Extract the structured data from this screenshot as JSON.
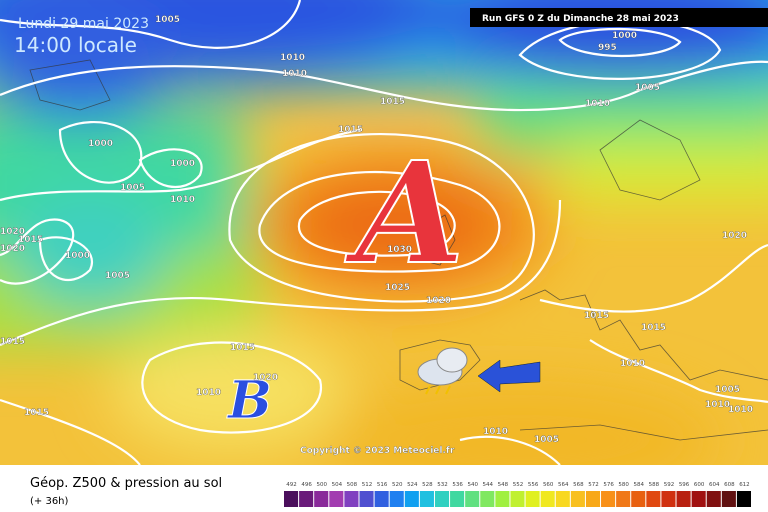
{
  "header": {
    "date": "Lundi 29 mai 2023",
    "time": "14:00 locale",
    "run": "Run GFS 0 Z du Dimanche 28 mai 2023"
  },
  "isobars": {
    "labels": [
      "1005",
      "1010",
      "1010",
      "1015",
      "1015",
      "1000",
      "1000",
      "1005",
      "1010",
      "1020",
      "1015",
      "1020",
      "1000",
      "1005",
      "1030",
      "1025",
      "1020",
      "1015",
      "1015",
      "1010",
      "1020",
      "1015",
      "1000",
      "995",
      "1005",
      "1010",
      "1020",
      "1015",
      "1015",
      "1010",
      "1005",
      "1010",
      "1010",
      "1010",
      "1005"
    ]
  },
  "pressure_centers": {
    "high": "A",
    "low": "B"
  },
  "copyright": "Copyright © 2023 Meteociel.fr",
  "legend": {
    "title": "Géop. Z500 & pression au sol",
    "lead_time": "(+ 36h)"
  },
  "colorbar": {
    "levels": [
      492,
      496,
      500,
      504,
      508,
      512,
      516,
      520,
      524,
      528,
      532,
      536,
      540,
      544,
      548,
      552,
      556,
      560,
      564,
      568,
      572,
      576,
      580,
      584,
      588,
      592,
      596,
      600,
      604,
      608,
      612
    ],
    "colors": [
      "#4b0f5c",
      "#6a1b7a",
      "#8a2a9a",
      "#a23cb0",
      "#8040c0",
      "#5050d0",
      "#3060e0",
      "#2080f0",
      "#10a0f0",
      "#20c0e0",
      "#30d0c0",
      "#40d8a0",
      "#60e080",
      "#80e860",
      "#a0f040",
      "#c0f030",
      "#e0f020",
      "#f0e820",
      "#f8d820",
      "#f8c020",
      "#f8a818",
      "#f89018",
      "#f07818",
      "#e86010",
      "#e04810",
      "#d03010",
      "#b82010",
      "#a01010",
      "#801010",
      "#601010",
      "#000000"
    ]
  }
}
